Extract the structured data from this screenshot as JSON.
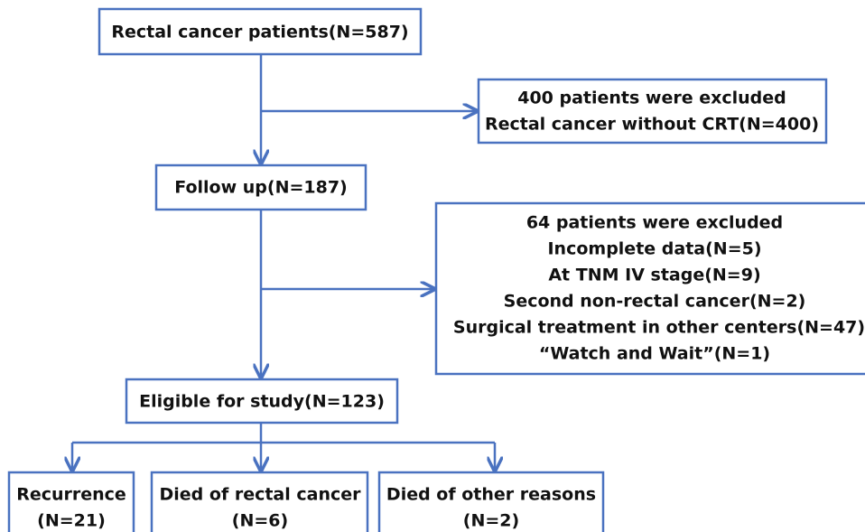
{
  "nodes": [
    {
      "lines": [
        "Rectal cancer patients(N=587)"
      ]
    },
    {
      "lines": [
        "400 patients were excluded",
        "Rectal cancer without CRT(N=400)"
      ]
    },
    {
      "lines": [
        "Follow up(N=187)"
      ]
    },
    {
      "lines": [
        "64 patients were excluded",
        "Incomplete data(N=5)",
        "At TNM IV stage(N=9)",
        "Second non-rectal cancer(N=2)",
        "Surgical treatment in other centers(N=47)",
        "“Watch and Wait”(N=1)"
      ]
    },
    {
      "lines": [
        "Eligible for study(N=123)"
      ]
    },
    {
      "lines": [
        "Recurrence",
        "(N=21)"
      ]
    },
    {
      "lines": [
        "Died of rectal cancer",
        "(N=6)"
      ]
    },
    {
      "lines": [
        "Died of other reasons",
        "(N=2)"
      ]
    }
  ]
}
